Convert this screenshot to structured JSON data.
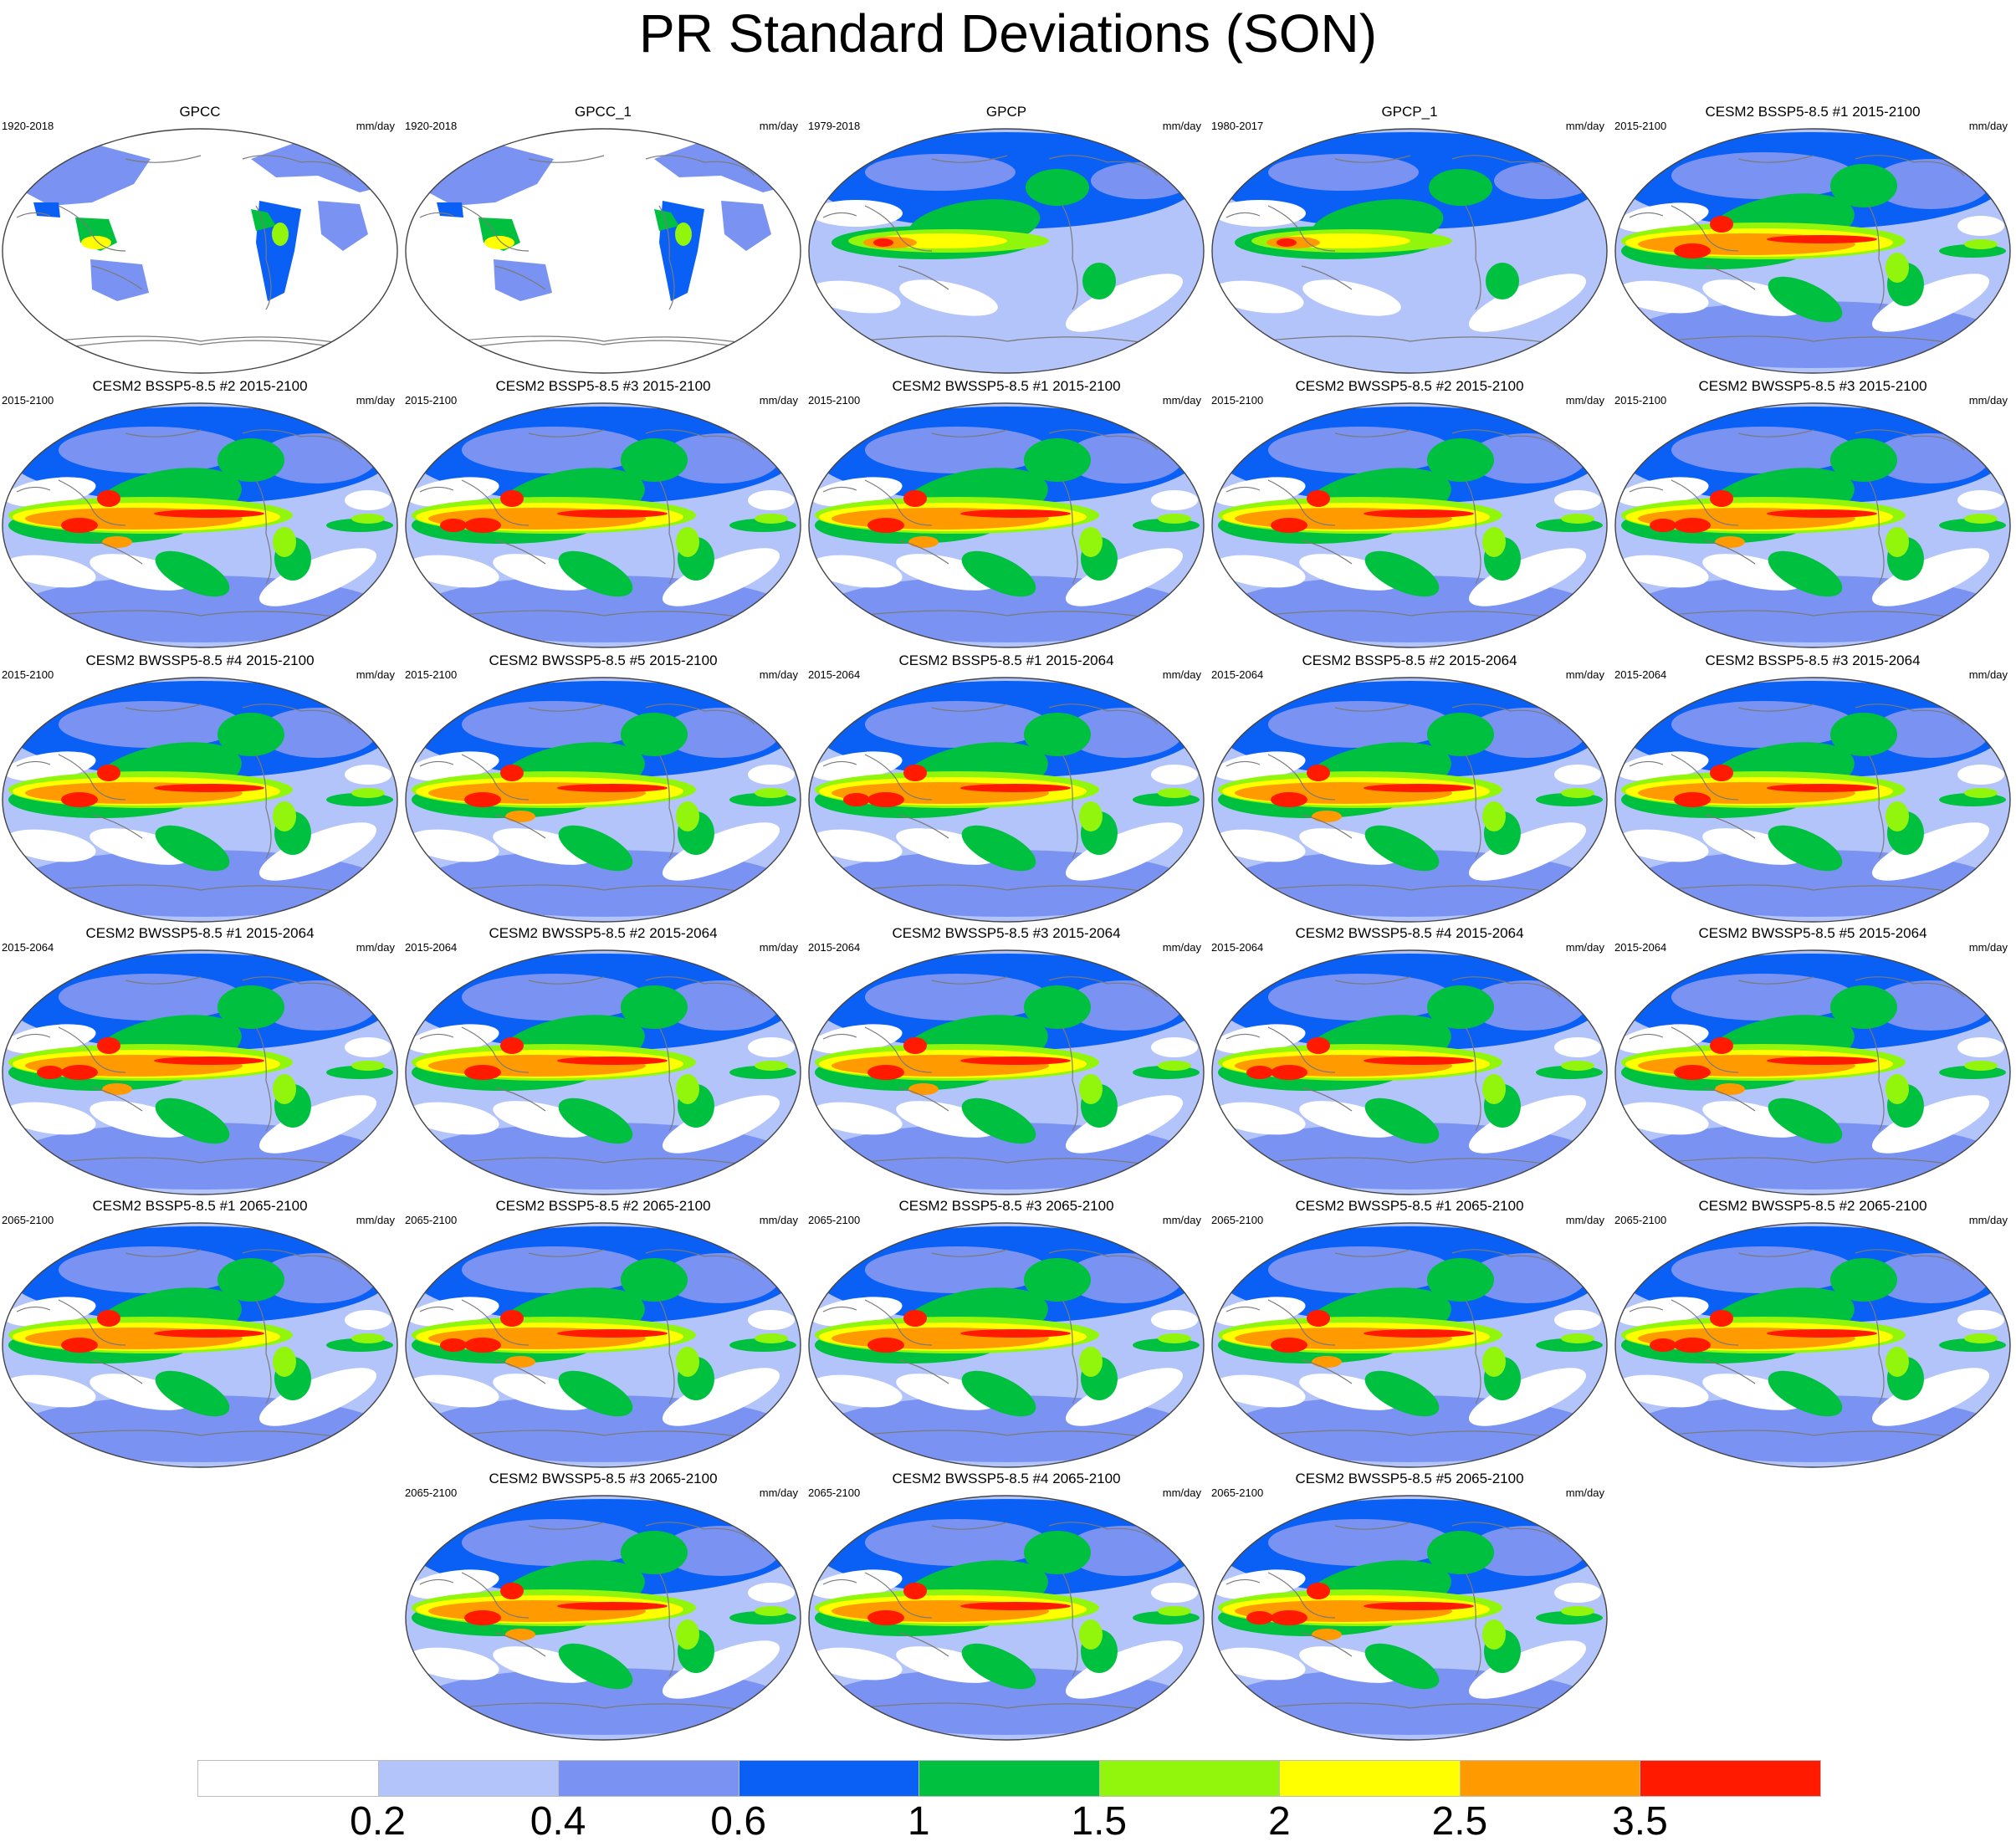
{
  "figure": {
    "title": "PR Standard Deviations (SON)"
  },
  "colorbar": {
    "ticks": [
      "0.2",
      "0.4",
      "0.6",
      "1",
      "1.5",
      "2",
      "2.5",
      "3.5"
    ],
    "colors": [
      "#ffffff",
      "#b3c4fa",
      "#7a93f2",
      "#0a60f5",
      "#00c040",
      "#92f50c",
      "#ffff00",
      "#ff9a00",
      "#ff1a00"
    ]
  },
  "chart_data": {
    "type": "heatmap",
    "title": "PR Standard Deviations (SON)",
    "units": "mm/day",
    "colorbar_levels": [
      0.2,
      0.4,
      0.6,
      1,
      1.5,
      2,
      2.5,
      3.5
    ],
    "panels": [
      {
        "title": "GPCC",
        "period": "1920-2018",
        "units": "mm/day",
        "kind": "land"
      },
      {
        "title": "GPCC_1",
        "period": "1920-2018",
        "units": "mm/day",
        "kind": "land"
      },
      {
        "title": "GPCP",
        "period": "1979-2018",
        "units": "mm/day",
        "kind": "obs"
      },
      {
        "title": "GPCP_1",
        "period": "1980-2017",
        "units": "mm/day",
        "kind": "obs"
      },
      {
        "title": "CESM2 BSSP5-8.5 #1 2015-2100",
        "period": "2015-2100",
        "units": "mm/day",
        "kind": "model"
      },
      {
        "title": "CESM2 BSSP5-8.5 #2 2015-2100",
        "period": "2015-2100",
        "units": "mm/day",
        "kind": "model"
      },
      {
        "title": "CESM2 BSSP5-8.5 #3 2015-2100",
        "period": "2015-2100",
        "units": "mm/day",
        "kind": "model"
      },
      {
        "title": "CESM2 BWSSP5-8.5 #1 2015-2100",
        "period": "2015-2100",
        "units": "mm/day",
        "kind": "model"
      },
      {
        "title": "CESM2 BWSSP5-8.5 #2 2015-2100",
        "period": "2015-2100",
        "units": "mm/day",
        "kind": "model"
      },
      {
        "title": "CESM2 BWSSP5-8.5 #3 2015-2100",
        "period": "2015-2100",
        "units": "mm/day",
        "kind": "model"
      },
      {
        "title": "CESM2 BWSSP5-8.5 #4 2015-2100",
        "period": "2015-2100",
        "units": "mm/day",
        "kind": "model"
      },
      {
        "title": "CESM2 BWSSP5-8.5 #5 2015-2100",
        "period": "2015-2100",
        "units": "mm/day",
        "kind": "model"
      },
      {
        "title": "CESM2 BSSP5-8.5 #1 2015-2064",
        "period": "2015-2064",
        "units": "mm/day",
        "kind": "model"
      },
      {
        "title": "CESM2 BSSP5-8.5 #2 2015-2064",
        "period": "2015-2064",
        "units": "mm/day",
        "kind": "model"
      },
      {
        "title": "CESM2 BSSP5-8.5 #3 2015-2064",
        "period": "2015-2064",
        "units": "mm/day",
        "kind": "model"
      },
      {
        "title": "CESM2 BWSSP5-8.5 #1 2015-2064",
        "period": "2015-2064",
        "units": "mm/day",
        "kind": "model"
      },
      {
        "title": "CESM2 BWSSP5-8.5 #2 2015-2064",
        "period": "2015-2064",
        "units": "mm/day",
        "kind": "model"
      },
      {
        "title": "CESM2 BWSSP5-8.5 #3 2015-2064",
        "period": "2015-2064",
        "units": "mm/day",
        "kind": "model"
      },
      {
        "title": "CESM2 BWSSP5-8.5 #4 2015-2064",
        "period": "2015-2064",
        "units": "mm/day",
        "kind": "model"
      },
      {
        "title": "CESM2 BWSSP5-8.5 #5 2015-2064",
        "period": "2015-2064",
        "units": "mm/day",
        "kind": "model"
      },
      {
        "title": "CESM2 BSSP5-8.5 #1 2065-2100",
        "period": "2065-2100",
        "units": "mm/day",
        "kind": "model"
      },
      {
        "title": "CESM2 BSSP5-8.5 #2 2065-2100",
        "period": "2065-2100",
        "units": "mm/day",
        "kind": "model"
      },
      {
        "title": "CESM2 BSSP5-8.5 #3 2065-2100",
        "period": "2065-2100",
        "units": "mm/day",
        "kind": "model"
      },
      {
        "title": "CESM2 BWSSP5-8.5 #1 2065-2100",
        "period": "2065-2100",
        "units": "mm/day",
        "kind": "model"
      },
      {
        "title": "CESM2 BWSSP5-8.5 #2 2065-2100",
        "period": "2065-2100",
        "units": "mm/day",
        "kind": "model"
      },
      {
        "title": "CESM2 BWSSP5-8.5 #3 2065-2100",
        "period": "2065-2100",
        "units": "mm/day",
        "kind": "model"
      },
      {
        "title": "CESM2 BWSSP5-8.5 #4 2065-2100",
        "period": "2065-2100",
        "units": "mm/day",
        "kind": "model"
      },
      {
        "title": "CESM2 BWSSP5-8.5 #5 2065-2100",
        "period": "2065-2100",
        "units": "mm/day",
        "kind": "model"
      }
    ]
  }
}
